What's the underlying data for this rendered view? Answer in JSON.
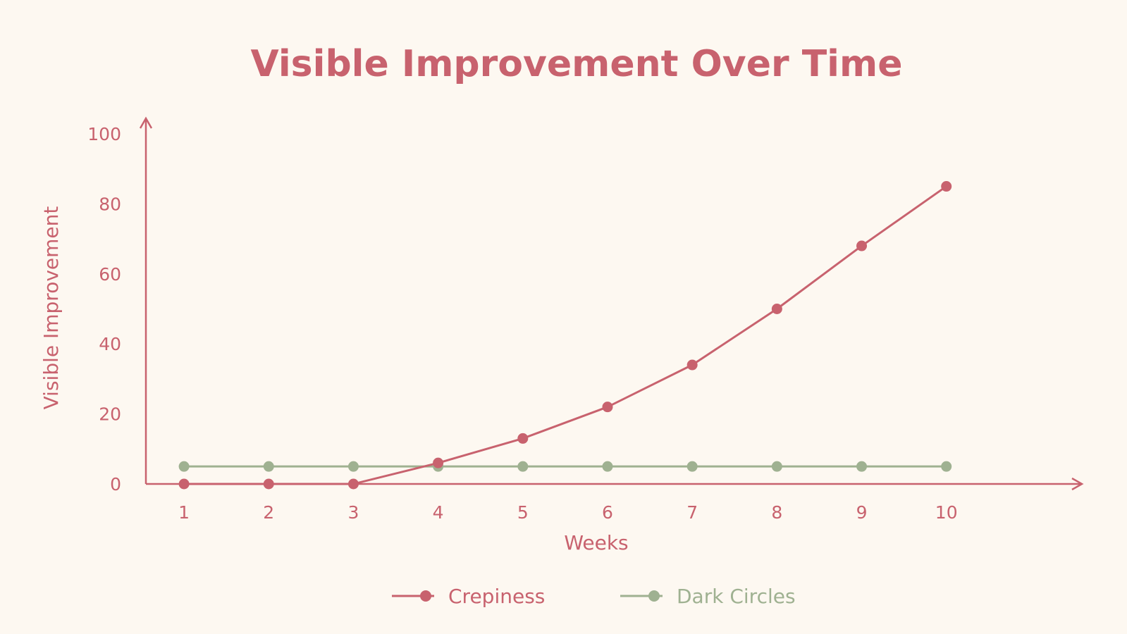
{
  "chart_data": {
    "type": "line",
    "title": "Visible Improvement Over Time",
    "xlabel": "Weeks",
    "ylabel": "Visible Improvement",
    "x": [
      1,
      2,
      3,
      4,
      5,
      6,
      7,
      8,
      9,
      10
    ],
    "xlim": [
      0.55,
      11.6
    ],
    "ylim": [
      0,
      100
    ],
    "yticks": [
      0,
      20,
      40,
      60,
      80,
      100
    ],
    "grid": false,
    "legend_position": "bottom-center",
    "series": [
      {
        "name": "Crepiness",
        "color": "#c8626e",
        "values": [
          0,
          0,
          0,
          6,
          13,
          22,
          34,
          50,
          68,
          85
        ]
      },
      {
        "name": "Dark Circles",
        "color": "#9fb191",
        "values": [
          5,
          5,
          5,
          5,
          5,
          5,
          5,
          5,
          5,
          5
        ]
      }
    ],
    "colors": {
      "axis": "#c8626e",
      "text": "#c8626e",
      "background": "#fdf8f1"
    }
  }
}
